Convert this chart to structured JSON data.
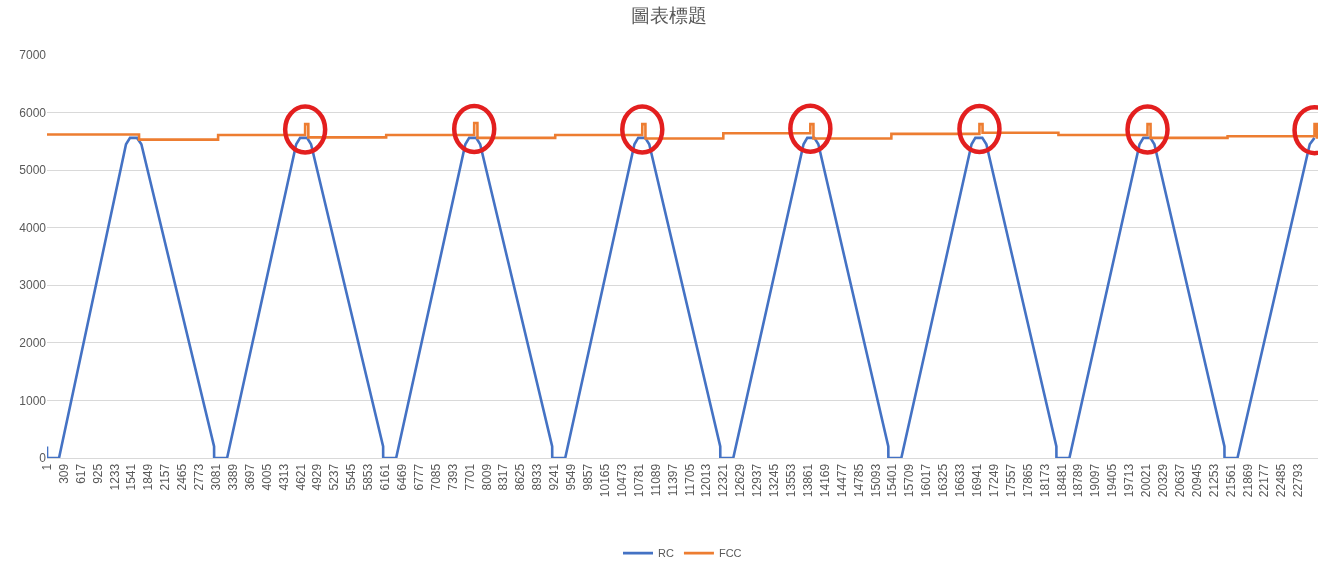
{
  "chart_data": {
    "type": "line",
    "title": "圖表標題",
    "xlim": [
      1,
      23150
    ],
    "xticks": [
      1,
      309,
      617,
      925,
      1233,
      1541,
      1849,
      2157,
      2465,
      2773,
      3081,
      3389,
      3697,
      4005,
      4313,
      4621,
      4929,
      5237,
      5545,
      5853,
      6161,
      6469,
      6777,
      7085,
      7393,
      7701,
      8009,
      8317,
      8625,
      8933,
      9241,
      9549,
      9857,
      10165,
      10473,
      10781,
      11089,
      11397,
      11705,
      12013,
      12321,
      12629,
      12937,
      13245,
      13553,
      13861,
      14169,
      14477,
      14785,
      15093,
      15401,
      15709,
      16017,
      16325,
      16633,
      16941,
      17249,
      17557,
      17865,
      18173,
      18481,
      18789,
      19097,
      19405,
      19713,
      20021,
      20329,
      20637,
      20945,
      21253,
      21561,
      21869,
      22177,
      22485,
      22793
    ],
    "ylim": [
      0,
      7000
    ],
    "yticks": [
      0,
      1000,
      2000,
      3000,
      4000,
      5000,
      6000,
      7000
    ],
    "grid": "y",
    "legend": "bottom",
    "marker": "none",
    "line_style": "solid",
    "series": [
      {
        "name": "RC",
        "color": "#4472c4",
        "x": [
          1,
          2,
          220,
          1440,
          1513,
          1641,
          1720,
          3044,
          3045,
          3281,
          4540,
          4611,
          4738,
          4810,
          6123,
          6124,
          6360,
          7620,
          7690,
          7817,
          7890,
          9202,
          9203,
          9439,
          10700,
          10769,
          10896,
          10970,
          12263,
          12264,
          12500,
          13780,
          13848,
          13976,
          14050,
          15324,
          15325,
          15561,
          16840,
          16909,
          17036,
          17110,
          18385,
          18386,
          18622,
          19900,
          19970,
          20097,
          20170,
          21446,
          21447,
          21683,
          23000,
          23086
        ],
        "values": [
          200,
          0,
          0,
          5450,
          5560,
          5560,
          5450,
          200,
          0,
          0,
          5450,
          5560,
          5560,
          5450,
          200,
          0,
          0,
          5450,
          5560,
          5560,
          5450,
          200,
          0,
          0,
          5450,
          5560,
          5560,
          5450,
          200,
          0,
          0,
          5450,
          5560,
          5560,
          5450,
          200,
          0,
          0,
          5450,
          5560,
          5560,
          5450,
          200,
          0,
          0,
          5450,
          5560,
          5560,
          5450,
          200,
          0,
          0,
          5450,
          5560
        ]
      },
      {
        "name": "FCC",
        "color": "#ed7d31",
        "x": [
          1,
          1677,
          1678,
          3117,
          3118,
          4702,
          4703,
          4760,
          4761,
          6178,
          6179,
          7781,
          7782,
          7840,
          7841,
          9257,
          9258,
          10842,
          10843,
          10900,
          10901,
          12318,
          12319,
          13903,
          13904,
          13960,
          13961,
          15379,
          15380,
          16983,
          16984,
          17040,
          17041,
          18422,
          18423,
          20044,
          20045,
          20100,
          20101,
          21502,
          21503,
          23086,
          23087,
          23130,
          23131,
          23150
        ],
        "values": [
          5620,
          5620,
          5530,
          5530,
          5610,
          5610,
          5800,
          5800,
          5570,
          5570,
          5610,
          5610,
          5820,
          5820,
          5560,
          5560,
          5610,
          5610,
          5800,
          5800,
          5550,
          5550,
          5640,
          5640,
          5800,
          5800,
          5550,
          5550,
          5630,
          5630,
          5800,
          5800,
          5650,
          5650,
          5610,
          5610,
          5800,
          5800,
          5560,
          5560,
          5590,
          5590,
          5800,
          5800,
          5570,
          5570
        ]
      }
    ]
  }
}
